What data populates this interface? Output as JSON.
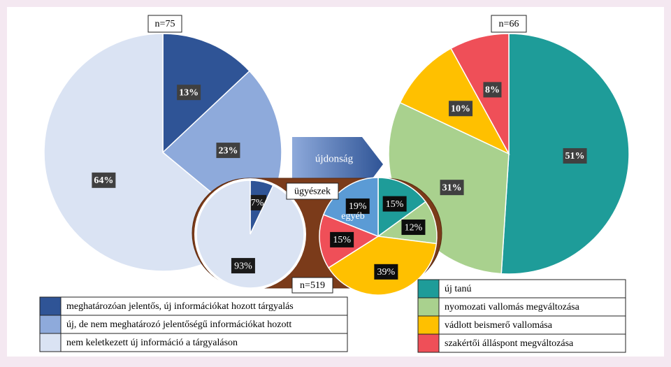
{
  "chart_data": [
    {
      "type": "pie",
      "title": "n=75",
      "categories": [
        "meghatározóan jelentős, új információkat hozott tárgyalás",
        "új, de nem meghatározó jelentőségű információkat hozott",
        "nem keletkezett új információ a tárgyaláson"
      ],
      "values": [
        13,
        23,
        64
      ],
      "value_labels": [
        "13%",
        "23%",
        "64%"
      ],
      "colors": [
        "#2f5496",
        "#8eaadb",
        "#dae3f3"
      ]
    },
    {
      "type": "pie",
      "title": "n=66",
      "categories": [
        "új tanú",
        "nyomozati vallomás megváltozása",
        "vádlott beismerő vallomása",
        "szakértői álláspont megváltozása"
      ],
      "values": [
        51,
        31,
        10,
        8
      ],
      "value_labels": [
        "51%",
        "31%",
        "10%",
        "8%"
      ],
      "colors": [
        "#1e9c99",
        "#a9d18e",
        "#ffc000",
        "#ef4f58"
      ]
    },
    {
      "type": "pie",
      "title": "n=519",
      "values": [
        7,
        93
      ],
      "value_labels": [
        "7%",
        "93%"
      ],
      "colors": [
        "#2f5496",
        "#dae3f3"
      ]
    },
    {
      "type": "pie",
      "title": "ügyészek",
      "annotation": "egyéb",
      "values": [
        15,
        12,
        39,
        15,
        19
      ],
      "value_labels": [
        "15%",
        "12%",
        "39%",
        "15%",
        "19%"
      ],
      "colors": [
        "#1e9c99",
        "#a9d18e",
        "#ffc000",
        "#ef4f58",
        "#5b9bd5"
      ]
    }
  ],
  "arrow_label": "újdonság"
}
